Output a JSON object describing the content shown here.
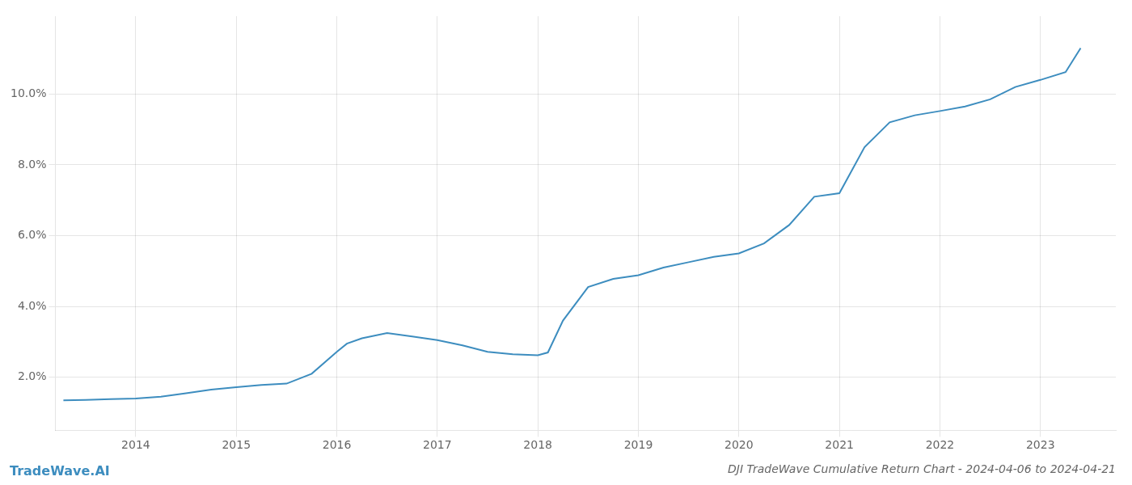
{
  "chart_data": {
    "type": "line",
    "title": "DJI TradeWave Cumulative Return Chart - 2024-04-06 to 2024-04-21",
    "annotations": [
      "TradeWave.AI"
    ],
    "color": "#3d8dbf",
    "x": [
      2013.28,
      2013.5,
      2013.75,
      2014.0,
      2014.25,
      2014.5,
      2014.75,
      2015.0,
      2015.25,
      2015.5,
      2015.75,
      2016.0,
      2016.1,
      2016.25,
      2016.5,
      2016.75,
      2017.0,
      2017.25,
      2017.5,
      2017.75,
      2018.0,
      2018.1,
      2018.25,
      2018.5,
      2018.75,
      2019.0,
      2019.25,
      2019.5,
      2019.75,
      2020.0,
      2020.25,
      2020.5,
      2020.75,
      2021.0,
      2021.25,
      2021.5,
      2021.75,
      2022.0,
      2022.25,
      2022.5,
      2022.75,
      2023.0,
      2023.25,
      2023.4
    ],
    "values": [
      1.35,
      1.36,
      1.38,
      1.4,
      1.45,
      1.55,
      1.65,
      1.72,
      1.78,
      1.82,
      2.1,
      2.72,
      2.95,
      3.1,
      3.25,
      3.15,
      3.05,
      2.9,
      2.72,
      2.65,
      2.62,
      2.7,
      3.6,
      4.55,
      4.78,
      4.88,
      5.1,
      5.25,
      5.4,
      5.5,
      5.78,
      6.3,
      7.1,
      7.2,
      8.5,
      9.2,
      9.4,
      9.52,
      9.65,
      9.85,
      10.2,
      10.4,
      10.62,
      11.3
    ],
    "xlim": [
      2013.2,
      2023.75
    ],
    "ylim": [
      0.5,
      12.2
    ],
    "xticks": [
      2014,
      2015,
      2016,
      2017,
      2018,
      2019,
      2020,
      2021,
      2022,
      2023
    ],
    "yticks": [
      {
        "value": 2.0,
        "label": "2.0%"
      },
      {
        "value": 4.0,
        "label": "4.0%"
      },
      {
        "value": 6.0,
        "label": "6.0%"
      },
      {
        "value": 8.0,
        "label": "8.0%"
      },
      {
        "value": 10.0,
        "label": "10.0%"
      }
    ],
    "grid": true
  }
}
